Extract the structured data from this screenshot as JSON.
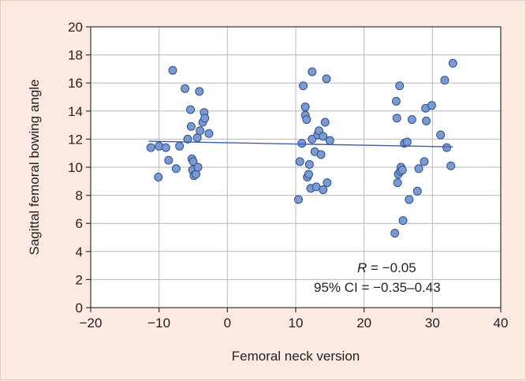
{
  "chart_data": {
    "type": "scatter",
    "xlabel": "Femoral neck version",
    "ylabel": "Sagittal femoral bowing angle",
    "xlim": [
      -20,
      40
    ],
    "ylim": [
      0,
      20
    ],
    "xticks": [
      -20,
      -10,
      0,
      10,
      20,
      30,
      40
    ],
    "yticks": [
      0,
      2,
      4,
      6,
      8,
      10,
      12,
      14,
      16,
      18,
      20
    ],
    "xtick_labels": [
      "−20",
      "−10",
      "0",
      "10",
      "20",
      "30",
      "40"
    ],
    "ytick_labels": [
      "0",
      "2",
      "4",
      "6",
      "8",
      "10",
      "12",
      "14",
      "16",
      "18",
      "20"
    ],
    "grid": true,
    "marker_color": "#7b9ad2",
    "marker_edge_color": "#2e4f8e",
    "line_color": "#3a5faa",
    "points": [
      [
        -11.2,
        11.4
      ],
      [
        -10.1,
        9.3
      ],
      [
        -10.0,
        11.5
      ],
      [
        -9.0,
        11.4
      ],
      [
        -8.6,
        10.5
      ],
      [
        -8.0,
        16.9
      ],
      [
        -7.5,
        9.9
      ],
      [
        -7.0,
        11.5
      ],
      [
        -6.2,
        15.6
      ],
      [
        -5.8,
        12.0
      ],
      [
        -5.4,
        14.1
      ],
      [
        -5.3,
        12.9
      ],
      [
        -5.2,
        10.6
      ],
      [
        -5.1,
        9.8
      ],
      [
        -5.0,
        10.4
      ],
      [
        -4.9,
        9.4
      ],
      [
        -4.6,
        9.5
      ],
      [
        -4.4,
        12.1
      ],
      [
        -4.3,
        10.0
      ],
      [
        -4.1,
        15.4
      ],
      [
        -4.0,
        12.6
      ],
      [
        -3.6,
        13.2
      ],
      [
        -3.4,
        13.9
      ],
      [
        -3.3,
        13.5
      ],
      [
        -2.7,
        12.4
      ],
      [
        10.4,
        7.7
      ],
      [
        10.6,
        10.4
      ],
      [
        10.9,
        11.7
      ],
      [
        11.1,
        15.8
      ],
      [
        11.4,
        13.7
      ],
      [
        11.4,
        14.3
      ],
      [
        11.6,
        13.4
      ],
      [
        11.7,
        9.3
      ],
      [
        11.9,
        9.5
      ],
      [
        12.0,
        10.2
      ],
      [
        12.2,
        8.5
      ],
      [
        12.4,
        12.0
      ],
      [
        12.4,
        16.8
      ],
      [
        12.8,
        11.1
      ],
      [
        13.0,
        8.6
      ],
      [
        13.2,
        12.3
      ],
      [
        13.4,
        12.6
      ],
      [
        13.7,
        10.9
      ],
      [
        14.0,
        12.2
      ],
      [
        14.0,
        8.4
      ],
      [
        14.3,
        13.2
      ],
      [
        14.5,
        16.3
      ],
      [
        14.6,
        8.9
      ],
      [
        15.0,
        11.9
      ],
      [
        24.5,
        5.3
      ],
      [
        24.7,
        14.7
      ],
      [
        24.8,
        13.5
      ],
      [
        24.9,
        8.9
      ],
      [
        25.0,
        9.5
      ],
      [
        25.2,
        15.8
      ],
      [
        25.3,
        9.7
      ],
      [
        25.4,
        10.0
      ],
      [
        25.6,
        9.8
      ],
      [
        25.7,
        6.2
      ],
      [
        25.9,
        11.7
      ],
      [
        26.3,
        11.8
      ],
      [
        26.6,
        7.7
      ],
      [
        27.0,
        13.4
      ],
      [
        27.8,
        8.3
      ],
      [
        28.0,
        9.9
      ],
      [
        28.8,
        10.4
      ],
      [
        29.0,
        14.2
      ],
      [
        29.1,
        13.3
      ],
      [
        29.9,
        14.4
      ],
      [
        31.2,
        12.3
      ],
      [
        31.8,
        16.2
      ],
      [
        32.1,
        11.4
      ],
      [
        32.7,
        10.1
      ],
      [
        33.0,
        17.4
      ]
    ],
    "fit_line": {
      "x": [
        -11.5,
        33.0
      ],
      "y": [
        11.85,
        11.45
      ]
    },
    "annotation": {
      "r_symbol": "R",
      "r_value": " = −0.05",
      "ci_text": "95% CI = −0.35–0.43"
    }
  }
}
